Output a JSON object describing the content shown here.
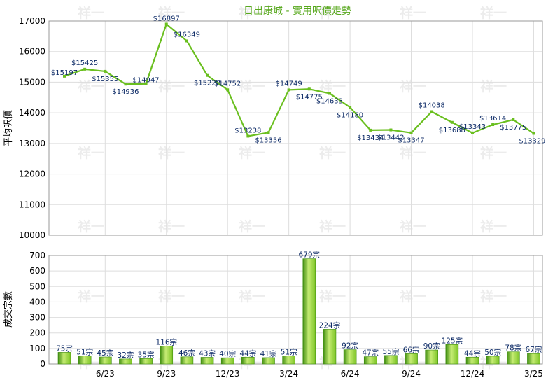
{
  "title": "日出康城 - 實用呎價走勢",
  "watermark": "祥一",
  "colors": {
    "title": "#58a81e",
    "line": "#6abf1f",
    "bar_light": "#c6ec74",
    "bar_mid": "#7cc425",
    "bar_dark": "#3f8d10",
    "label": "#0c2a66",
    "grid": "#dddddd",
    "frame": "#9a9a9a"
  },
  "chart_data": [
    {
      "type": "line",
      "ylabel": "平均呎價",
      "ylim": [
        10000,
        17000
      ],
      "yticks": [
        10000,
        11000,
        12000,
        13000,
        14000,
        15000,
        16000,
        17000
      ],
      "x": [
        "4/23",
        "5/23",
        "6/23",
        "7/23",
        "8/23",
        "9/23",
        "10/23",
        "11/23",
        "12/23",
        "1/24",
        "2/24",
        "3/24",
        "4/24",
        "5/24",
        "6/24",
        "7/24",
        "8/24",
        "9/24",
        "10/24",
        "11/24",
        "12/24",
        "1/25",
        "2/25",
        "3/25"
      ],
      "values": [
        15197,
        15425,
        15355,
        14936,
        14947,
        16897,
        16349,
        15222,
        14752,
        13238,
        13356,
        14749,
        14775,
        14633,
        14180,
        13434,
        13442,
        13347,
        14038,
        13688,
        13343,
        13614,
        13775,
        13329
      ],
      "data_labels": [
        "$15197",
        "$15425",
        "$15355",
        "$14936",
        "$14947",
        "$16897",
        "$16349",
        "$15222",
        "$14752",
        "$13238",
        "$13356",
        "$14749",
        "$14775",
        "$14633",
        "$14180",
        "$13434",
        "$13442",
        "$13347",
        "$14038",
        "$13688",
        "$13343",
        "$13614",
        "$13775",
        "$13329"
      ],
      "grid": true
    },
    {
      "type": "bar",
      "ylabel": "成交宗數",
      "ylim": [
        0,
        700
      ],
      "yticks": [
        0,
        100,
        200,
        300,
        400,
        500,
        600,
        700
      ],
      "categories": [
        "4/23",
        "5/23",
        "6/23",
        "7/23",
        "8/23",
        "9/23",
        "10/23",
        "11/23",
        "12/23",
        "1/24",
        "2/24",
        "3/24",
        "4/24",
        "5/24",
        "6/24",
        "7/24",
        "8/24",
        "9/24",
        "10/24",
        "11/24",
        "12/24",
        "1/25",
        "2/25",
        "3/25"
      ],
      "values": [
        75,
        51,
        45,
        32,
        35,
        116,
        46,
        43,
        40,
        44,
        41,
        51,
        679,
        224,
        92,
        47,
        55,
        66,
        90,
        125,
        44,
        50,
        78,
        67
      ],
      "data_labels": [
        "75宗",
        "51宗",
        "45宗",
        "32宗",
        "35宗",
        "116宗",
        "46宗",
        "43宗",
        "40宗",
        "44宗",
        "41宗",
        "51宗",
        "679宗",
        "224宗",
        "92宗",
        "47宗",
        "55宗",
        "66宗",
        "90宗",
        "125宗",
        "44宗",
        "50宗",
        "78宗",
        "67宗"
      ],
      "xtick_labels": [
        "6/23",
        "9/23",
        "12/23",
        "3/24",
        "6/24",
        "9/24",
        "12/24",
        "3/25"
      ],
      "grid": true
    }
  ]
}
